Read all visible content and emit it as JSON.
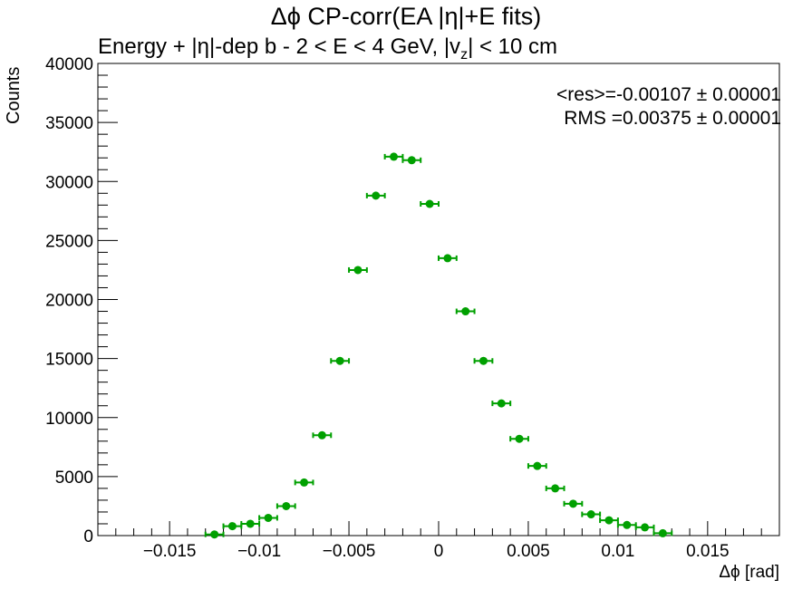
{
  "title": "Δϕ CP-corr(EA |η|+E fits)",
  "subtitle": "Energy + |η|-dep b   -   2 < E < 4 GeV, |v_z| < 10 cm",
  "stats": {
    "mean_label": "<res>=-0.00107 ± 0.00001",
    "rms_label": "RMS =0.00375 ± 0.00001"
  },
  "colors": {
    "marker": "#00a000",
    "axis": "#000000"
  },
  "chart_data": {
    "type": "scatter",
    "title": "Δϕ CP-corr(EA |η|+E fits)",
    "subtitle": "Energy + |η|-dep b   -   2 < E < 4 GeV, |v_z| < 10 cm",
    "xlabel": "Δϕ  [rad]",
    "ylabel": "Counts",
    "xlim": [
      -0.019,
      0.019
    ],
    "ylim": [
      0,
      40000
    ],
    "xticks": [
      -0.015,
      -0.01,
      -0.005,
      0,
      0.005,
      0.01,
      0.015
    ],
    "xtick_labels": [
      "−0.015",
      "−0.01",
      "−0.005",
      "0",
      "0.005",
      "0.01",
      "0.015"
    ],
    "yticks": [
      0,
      5000,
      10000,
      15000,
      20000,
      25000,
      30000,
      35000,
      40000
    ],
    "ytick_labels": [
      "0",
      "5000",
      "10000",
      "15000",
      "20000",
      "25000",
      "30000",
      "35000",
      "40000"
    ],
    "bin_width": 0.001,
    "grid": false,
    "series": [
      {
        "x": [
          -0.0125,
          -0.0115,
          -0.0105,
          -0.0095,
          -0.0085,
          -0.0075,
          -0.0065,
          -0.0055,
          -0.0045,
          -0.0035,
          -0.0025,
          -0.0015,
          -0.0005,
          0.0005,
          0.0015,
          0.0025,
          0.0035,
          0.0045,
          0.0055,
          0.0065,
          0.0075,
          0.0085,
          0.0095,
          0.0105,
          0.0115,
          0.0125
        ],
        "y": [
          100,
          800,
          1000,
          1500,
          2500,
          4500,
          8500,
          14800,
          22500,
          28800,
          32100,
          31800,
          28100,
          23500,
          19000,
          14800,
          11200,
          8200,
          5900,
          4000,
          2700,
          1800,
          1300,
          900,
          700,
          200
        ]
      }
    ]
  }
}
